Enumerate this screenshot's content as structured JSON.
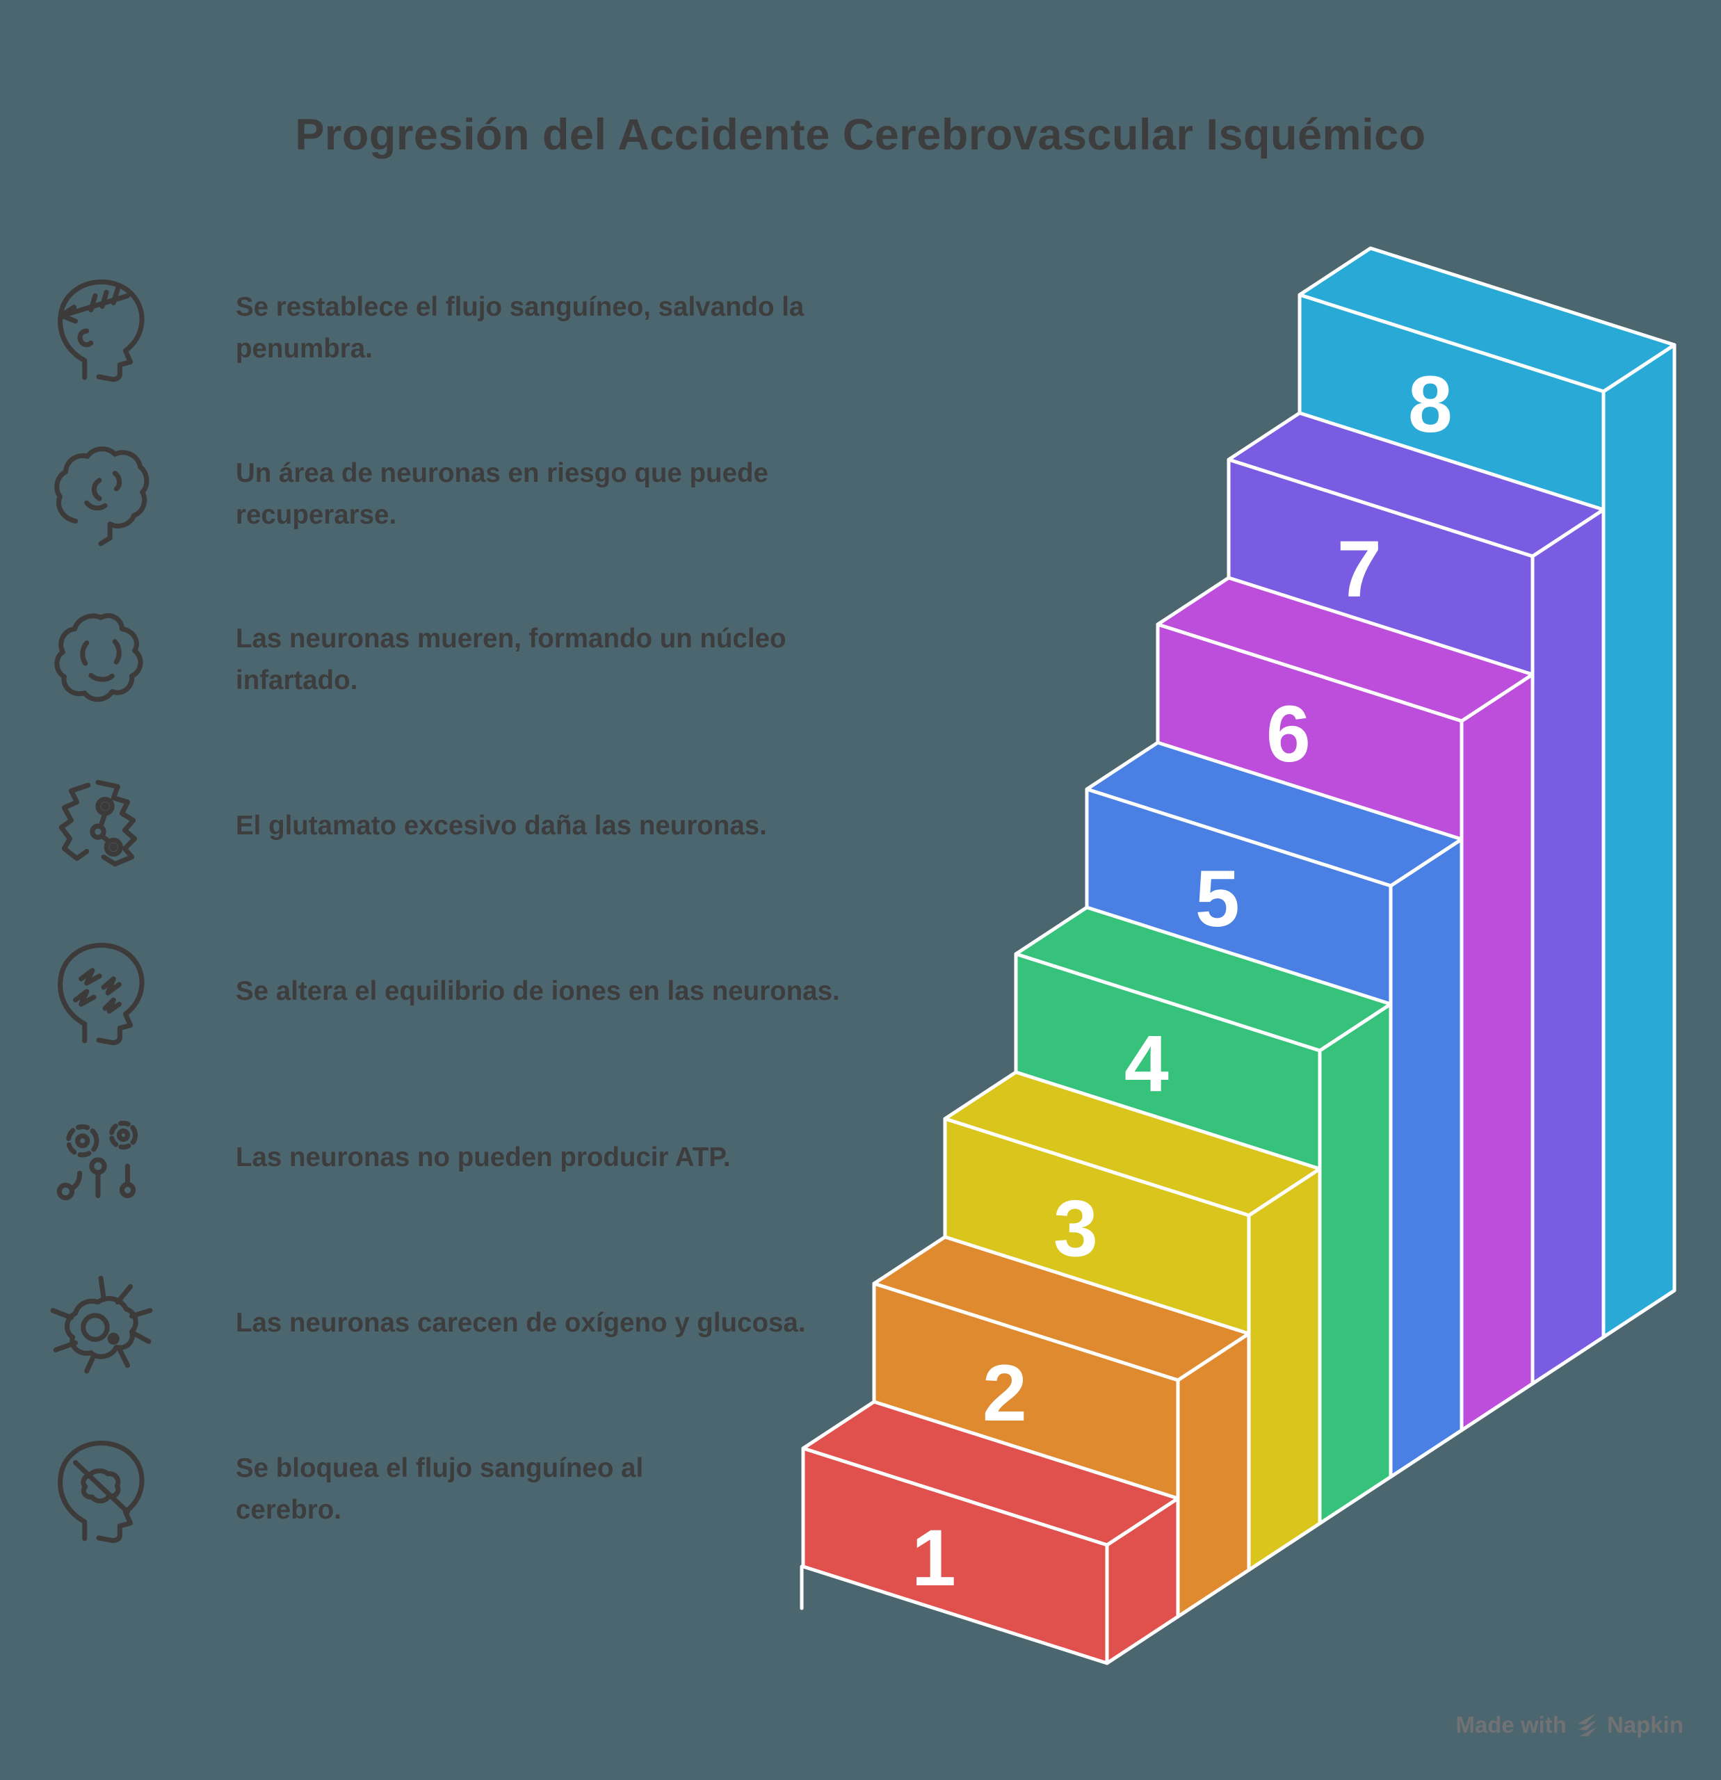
{
  "title": "Progresión del Accidente Cerebrovascular Isquémico",
  "background_color": "#4C6670",
  "text_color": "#3D3D3D",
  "icon_color": "#3D3A3A",
  "legend": {
    "items": [
      {
        "icon": "reperfusion-head-icon",
        "label": "Se restablece el flujo sanguíneo, salvando la penumbra."
      },
      {
        "icon": "penumbra-brain-icon",
        "label": "Un área de neuronas en riesgo que puede recuperarse."
      },
      {
        "icon": "infarct-core-icon",
        "label": "Las neuronas mueren, formando un núcleo infartado."
      },
      {
        "icon": "excitotoxicity-icon",
        "label": "El glutamato excesivo daña las neuronas."
      },
      {
        "icon": "ion-imbalance-head-icon",
        "label": "Se altera el equilibrio de iones en las neuronas."
      },
      {
        "icon": "atp-failure-icon",
        "label": "Las neuronas no pueden producir ATP."
      },
      {
        "icon": "neuron-icon",
        "label": "Las neuronas carecen de oxígeno y glucosa."
      },
      {
        "icon": "blocked-flow-head-icon",
        "label": "Se bloquea el flujo sanguíneo al\ncerebro."
      }
    ]
  },
  "chart_data": {
    "type": "isometric-staircase",
    "title": "Progresión del Accidente Cerebrovascular Isquémico",
    "steps": [
      {
        "number": "1",
        "color": "#E0514D"
      },
      {
        "number": "2",
        "color": "#DF8A2E"
      },
      {
        "number": "3",
        "color": "#D9C51B"
      },
      {
        "number": "4",
        "color": "#36C27B"
      },
      {
        "number": "5",
        "color": "#4A80E4"
      },
      {
        "number": "6",
        "color": "#BC4EDB"
      },
      {
        "number": "7",
        "color": "#7A5CE3"
      },
      {
        "number": "8",
        "color": "#29AAD6"
      }
    ],
    "outline_color": "#FFFFFF",
    "number_color": "#FFFFFF",
    "geometry": {
      "origin": [
        1155,
        2253
      ],
      "width_vec": [
        437,
        139
      ],
      "depth_vec": [
        102,
        -67
      ],
      "rise": 170,
      "outline_width": 5,
      "number_size": 115
    }
  },
  "footer": {
    "made_with": "Made with",
    "brand": "Napkin",
    "logo": "napkin-logo",
    "color": "#707273"
  }
}
